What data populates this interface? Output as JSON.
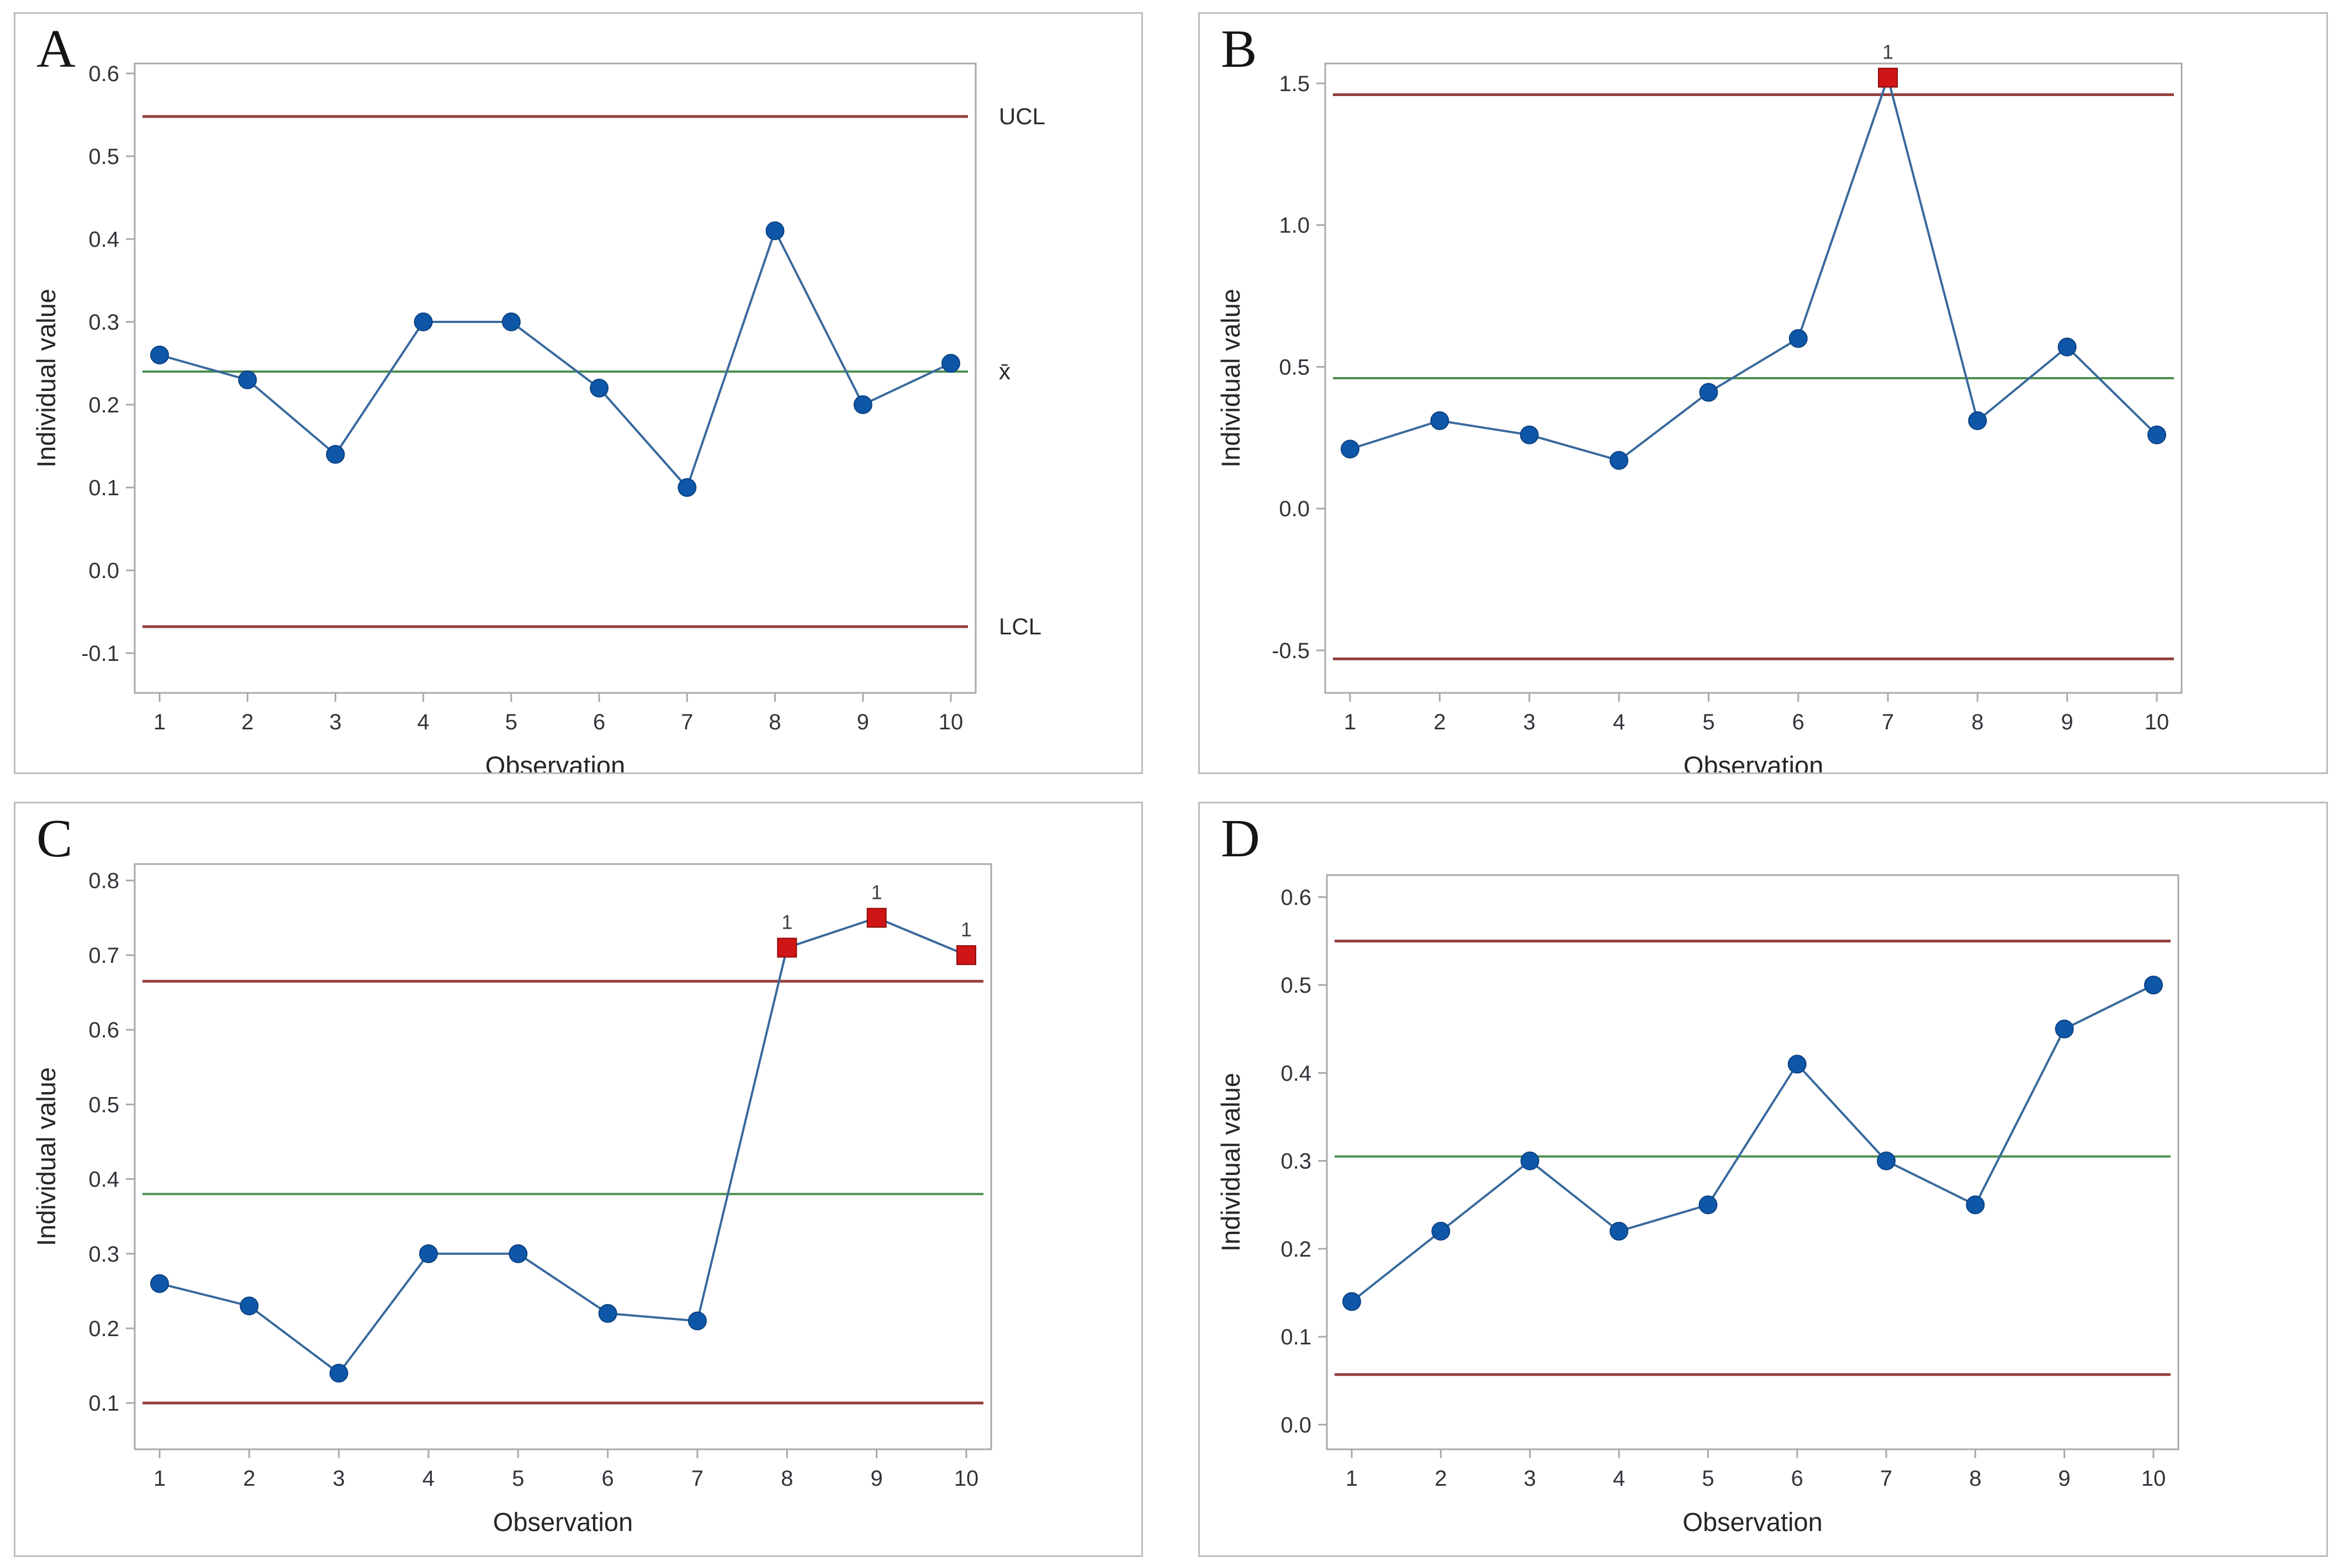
{
  "figure": {
    "description": "Four individuals (I-MR style) control charts labeled A to D",
    "panel_letters": [
      "A",
      "B",
      "C",
      "D"
    ]
  },
  "colors": {
    "data_line": "#38699c",
    "marker_fill": "#0e57a8",
    "marker_edge": "#0b4181",
    "limit_line": "#94403e",
    "center_line": "#4b8e4f",
    "out_marker_fill": "#cf1515",
    "out_marker_edge": "#8c0f0f",
    "flag_text": "#3f3f3f",
    "frame": "#a9a9a9",
    "tick_text": "#33333b",
    "axis_title_text": "#262626",
    "side_label_text": "#2b2b2b",
    "panel_border": "#bdbdbd"
  },
  "chart_data": [
    {
      "panel_label": "A",
      "type": "line",
      "xlabel": "Observation",
      "ylabel": "Individual value",
      "x": [
        1,
        2,
        3,
        4,
        5,
        6,
        7,
        8,
        9,
        10
      ],
      "values": [
        0.26,
        0.23,
        0.14,
        0.3,
        0.3,
        0.22,
        0.1,
        0.41,
        0.2,
        0.25
      ],
      "center": 0.24,
      "ucl": 0.548,
      "lcl": -0.068,
      "flagged_observations": [],
      "flag_label": "1",
      "yticks": [
        "0.6",
        "0.5",
        "0.4",
        "0.3",
        "0.2",
        "0.1",
        "0.0",
        "-0.1"
      ],
      "xticks": [
        "1",
        "2",
        "3",
        "4",
        "5",
        "6",
        "7",
        "8",
        "9",
        "10"
      ],
      "ylim": [
        -0.148,
        0.612
      ],
      "right_labels": [
        {
          "text": "UCL",
          "at": "ucl"
        },
        {
          "text": "x̄",
          "at": "center"
        },
        {
          "text": "LCL",
          "at": "lcl"
        }
      ],
      "grid": false,
      "legend": "none"
    },
    {
      "panel_label": "B",
      "type": "line",
      "xlabel": "Observation",
      "ylabel": "Individual value",
      "x": [
        1,
        2,
        3,
        4,
        5,
        6,
        7,
        8,
        9,
        10
      ],
      "values": [
        0.21,
        0.31,
        0.26,
        0.17,
        0.41,
        0.6,
        1.52,
        0.31,
        0.57,
        0.26
      ],
      "center": 0.46,
      "ucl": 1.46,
      "lcl": -0.53,
      "flagged_observations": [
        7
      ],
      "flag_label": "1",
      "yticks": [
        "1.5",
        "1.0",
        "0.5",
        "0.0",
        "-0.5"
      ],
      "xticks": [
        "1",
        "2",
        "3",
        "4",
        "5",
        "6",
        "7",
        "8",
        "9",
        "10"
      ],
      "ylim": [
        -0.65,
        1.57
      ],
      "right_labels": [],
      "grid": false,
      "legend": "none"
    },
    {
      "panel_label": "C",
      "type": "line",
      "xlabel": "Observation",
      "ylabel": "Individual value",
      "x": [
        1,
        2,
        3,
        4,
        5,
        6,
        7,
        8,
        9,
        10
      ],
      "values": [
        0.26,
        0.23,
        0.14,
        0.3,
        0.3,
        0.22,
        0.21,
        0.71,
        0.75,
        0.7
      ],
      "center": 0.38,
      "ucl": 0.665,
      "lcl": 0.1,
      "flagged_observations": [
        8,
        9,
        10
      ],
      "flag_label": "1",
      "yticks": [
        "0.8",
        "0.7",
        "0.6",
        "0.5",
        "0.4",
        "0.3",
        "0.2",
        "0.1"
      ],
      "xticks": [
        "1",
        "2",
        "3",
        "4",
        "5",
        "6",
        "7",
        "8",
        "9",
        "10"
      ],
      "ylim": [
        0.038,
        0.822
      ],
      "right_labels": [],
      "grid": false,
      "legend": "none"
    },
    {
      "panel_label": "D",
      "type": "line",
      "xlabel": "Observation",
      "ylabel": "Individual value",
      "x": [
        1,
        2,
        3,
        4,
        5,
        6,
        7,
        8,
        9,
        10
      ],
      "values": [
        0.14,
        0.22,
        0.3,
        0.22,
        0.25,
        0.41,
        0.3,
        0.25,
        0.45,
        0.5
      ],
      "center": 0.305,
      "ucl": 0.55,
      "lcl": 0.057,
      "flagged_observations": [],
      "flag_label": "1",
      "yticks": [
        "0.6",
        "0.5",
        "0.4",
        "0.3",
        "0.2",
        "0.1",
        "0.0"
      ],
      "xticks": [
        "1",
        "2",
        "3",
        "4",
        "5",
        "6",
        "7",
        "8",
        "9",
        "10"
      ],
      "ylim": [
        -0.028,
        0.625
      ],
      "right_labels": [],
      "grid": false,
      "legend": "none"
    }
  ]
}
